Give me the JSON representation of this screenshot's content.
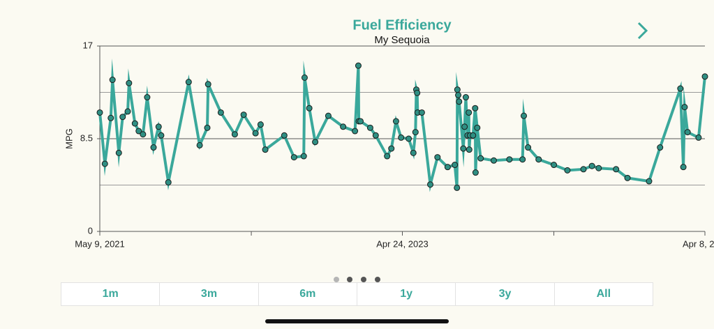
{
  "chart_data": {
    "type": "line",
    "title": "Fuel Efficiency",
    "subtitle": "My Sequoia",
    "y_label": "MPG",
    "color": "#3aa89b",
    "marker_color": "#2f8f83",
    "xlim": [
      "2021-05-09",
      "2025-04-08"
    ],
    "xticks": [
      {
        "value": "2021-05-09",
        "label": "May 9, 2021"
      },
      {
        "value": "2023-04-24",
        "label": "Apr 24, 2023"
      },
      {
        "value": "2025-04-08",
        "label": "Apr 8, 2"
      }
    ],
    "minor_xticks": [
      "2022-05-02",
      "2024-04-16"
    ],
    "ylim": [
      0,
      17
    ],
    "yticks": [
      0,
      8.5,
      17
    ],
    "minor_yticks": [
      4.25,
      12.75
    ],
    "grid": true,
    "x": [
      "2021-05-09",
      "2021-05-21",
      "2021-06-04",
      "2021-06-08",
      "2021-06-23",
      "2021-07-02",
      "2021-07-14",
      "2021-07-17",
      "2021-07-31",
      "2021-08-09",
      "2021-08-19",
      "2021-08-29",
      "2021-09-13",
      "2021-09-25",
      "2021-10-01",
      "2021-10-18",
      "2021-12-05",
      "2021-12-31",
      "2022-01-18",
      "2022-01-20",
      "2022-02-19",
      "2022-03-24",
      "2022-04-14",
      "2022-05-12",
      "2022-05-24",
      "2022-06-04",
      "2022-07-19",
      "2022-08-11",
      "2022-09-03",
      "2022-09-05",
      "2022-09-16",
      "2022-09-30",
      "2022-10-31",
      "2022-12-05",
      "2023-01-02",
      "2023-01-10",
      "2023-01-11",
      "2023-01-15",
      "2023-02-07",
      "2023-02-20",
      "2023-03-19",
      "2023-03-29",
      "2023-04-09",
      "2023-04-21",
      "2023-05-09",
      "2023-05-20",
      "2023-05-25",
      "2023-05-27",
      "2023-05-29",
      "2023-05-30",
      "2023-06-09",
      "2023-06-29",
      "2023-07-16",
      "2023-08-09",
      "2023-08-26",
      "2023-08-31",
      "2023-09-01",
      "2023-09-03",
      "2023-09-05",
      "2023-09-15",
      "2023-09-18",
      "2023-09-21",
      "2023-09-25",
      "2023-09-28",
      "2023-09-29",
      "2023-10-01",
      "2023-10-08",
      "2023-10-13",
      "2023-10-14",
      "2023-10-18",
      "2023-10-26",
      "2023-11-26",
      "2024-01-02",
      "2024-02-02",
      "2024-02-05",
      "2024-02-15",
      "2024-03-11",
      "2024-04-16",
      "2024-05-18",
      "2024-06-25",
      "2024-07-15",
      "2024-07-31",
      "2024-09-10",
      "2024-10-07",
      "2024-11-27",
      "2024-12-23",
      "2025-02-09",
      "2025-02-16",
      "2025-02-19",
      "2025-02-26",
      "2025-03-24",
      "2025-04-08"
    ],
    "values": [
      10.9,
      6.2,
      10.4,
      13.9,
      7.2,
      10.5,
      11.0,
      13.6,
      9.9,
      9.2,
      8.9,
      12.3,
      7.7,
      9.6,
      8.8,
      4.5,
      13.7,
      7.9,
      9.5,
      13.5,
      10.9,
      8.9,
      10.7,
      9.0,
      9.8,
      7.5,
      8.8,
      6.8,
      6.9,
      14.1,
      11.3,
      8.2,
      10.6,
      9.6,
      9.2,
      15.2,
      10.1,
      10.1,
      9.5,
      8.8,
      6.9,
      7.6,
      10.1,
      8.6,
      8.5,
      7.2,
      9.1,
      13.0,
      12.7,
      10.9,
      10.9,
      4.3,
      6.8,
      5.9,
      6.1,
      4.0,
      13.0,
      12.5,
      11.9,
      7.6,
      9.6,
      12.3,
      8.8,
      10.9,
      7.5,
      8.8,
      8.8,
      11.3,
      5.4,
      9.5,
      6.7,
      6.5,
      6.6,
      6.6,
      10.6,
      7.7,
      6.6,
      6.1,
      5.6,
      5.7,
      6.0,
      5.8,
      5.7,
      4.9,
      4.6,
      7.7,
      13.1,
      5.9,
      11.4,
      9.1,
      8.6,
      14.2
    ]
  },
  "controls": {
    "ranges": [
      "1m",
      "3m",
      "6m",
      "1y",
      "3y",
      "All"
    ]
  }
}
